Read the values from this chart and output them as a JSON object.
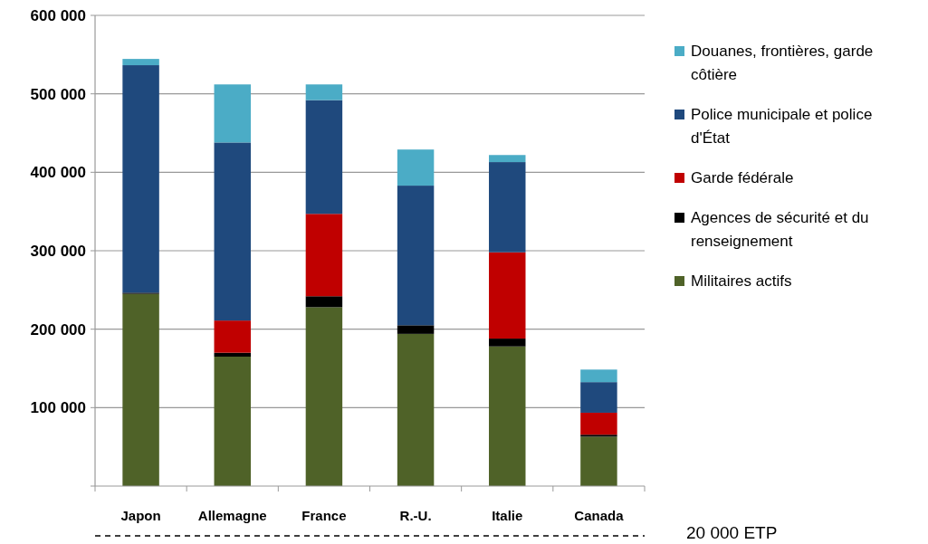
{
  "chart_data": {
    "type": "bar",
    "stacked": true,
    "categories": [
      "Japon",
      "Allemagne",
      "France",
      "R.-U.",
      "Italie",
      "Canada"
    ],
    "series": [
      {
        "name": "Militaires actifs",
        "color": "#4f6228",
        "values": [
          245000,
          165000,
          228000,
          194000,
          178000,
          63000
        ]
      },
      {
        "name": "Agences de sécurité et du renseignement",
        "color": "#000000",
        "values": [
          1500,
          5000,
          14000,
          11000,
          10000,
          2500
        ]
      },
      {
        "name": "Garde fédérale",
        "color": "#c00000",
        "values": [
          0,
          41000,
          105000,
          0,
          110000,
          28000
        ]
      },
      {
        "name": "Police municipale et police d'État",
        "color": "#1f497d",
        "values": [
          290000,
          227000,
          145000,
          178000,
          115000,
          39000
        ]
      },
      {
        "name": "Douanes, frontières, garde côtière",
        "color": "#4bacc6",
        "values": [
          8000,
          74000,
          20000,
          46000,
          9000,
          16000
        ]
      }
    ],
    "ylim": [
      0,
      600000
    ],
    "yticks": [
      {
        "value": 0,
        "label": null
      },
      {
        "value": 100000,
        "label": "100 000"
      },
      {
        "value": 200000,
        "label": "200 000"
      },
      {
        "value": 300000,
        "label": "300 000"
      },
      {
        "value": 400000,
        "label": "400 000"
      },
      {
        "value": 500000,
        "label": "500 000"
      },
      {
        "value": 600000,
        "label": "600 000"
      }
    ],
    "grid": "y",
    "legend": "right",
    "annotations": [
      "20 000 ETP"
    ]
  }
}
